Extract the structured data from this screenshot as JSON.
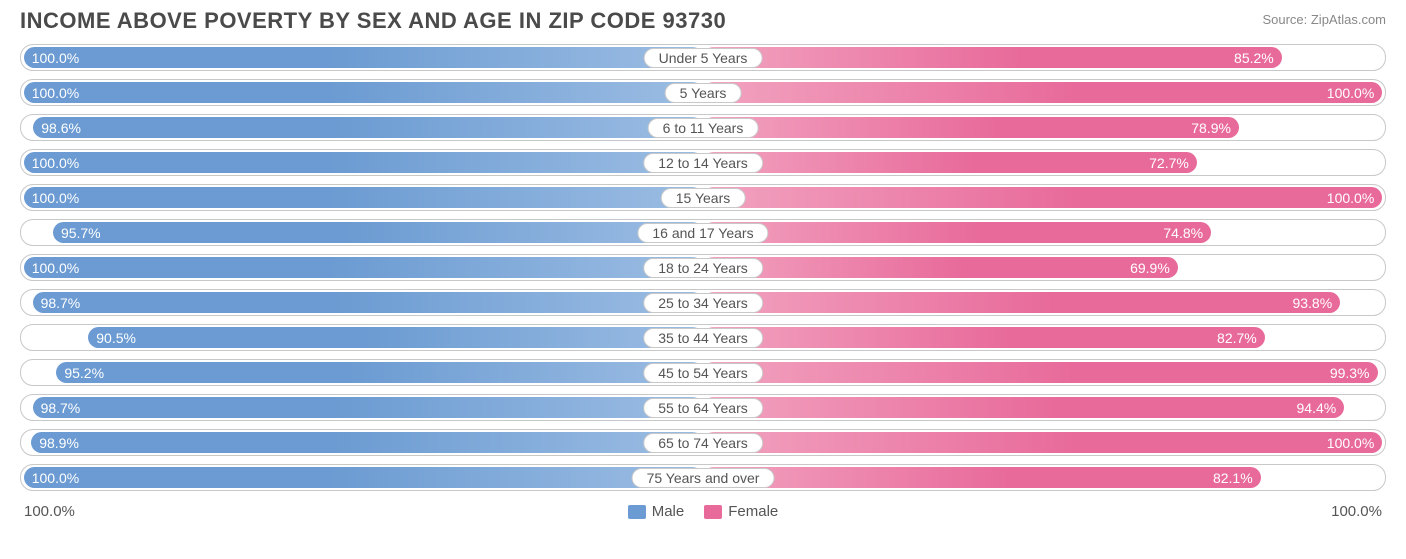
{
  "title": "INCOME ABOVE POVERTY BY SEX AND AGE IN ZIP CODE 93730",
  "source": "Source: ZipAtlas.com",
  "chart": {
    "type": "diverging-bar",
    "male_color": "#6b9bd2",
    "female_color": "#e86a9a",
    "male_light": "#9cbde3",
    "female_light": "#f2a3c0",
    "border_color": "#c8c8c8",
    "background": "#ffffff",
    "label_fontsize": 14,
    "title_fontsize": 22,
    "title_color": "#4a4a4a",
    "value_text_color": "#ffffff",
    "axis_left": "100.0%",
    "axis_right": "100.0%",
    "legend": {
      "male": "Male",
      "female": "Female"
    },
    "rows": [
      {
        "category": "Under 5 Years",
        "male": 100.0,
        "female": 85.2
      },
      {
        "category": "5 Years",
        "male": 100.0,
        "female": 100.0
      },
      {
        "category": "6 to 11 Years",
        "male": 98.6,
        "female": 78.9
      },
      {
        "category": "12 to 14 Years",
        "male": 100.0,
        "female": 72.7
      },
      {
        "category": "15 Years",
        "male": 100.0,
        "female": 100.0
      },
      {
        "category": "16 and 17 Years",
        "male": 95.7,
        "female": 74.8
      },
      {
        "category": "18 to 24 Years",
        "male": 100.0,
        "female": 69.9
      },
      {
        "category": "25 to 34 Years",
        "male": 98.7,
        "female": 93.8
      },
      {
        "category": "35 to 44 Years",
        "male": 90.5,
        "female": 82.7
      },
      {
        "category": "45 to 54 Years",
        "male": 95.2,
        "female": 99.3
      },
      {
        "category": "55 to 64 Years",
        "male": 98.7,
        "female": 94.4
      },
      {
        "category": "65 to 74 Years",
        "male": 98.9,
        "female": 100.0
      },
      {
        "category": "75 Years and over",
        "male": 100.0,
        "female": 82.1
      }
    ]
  }
}
